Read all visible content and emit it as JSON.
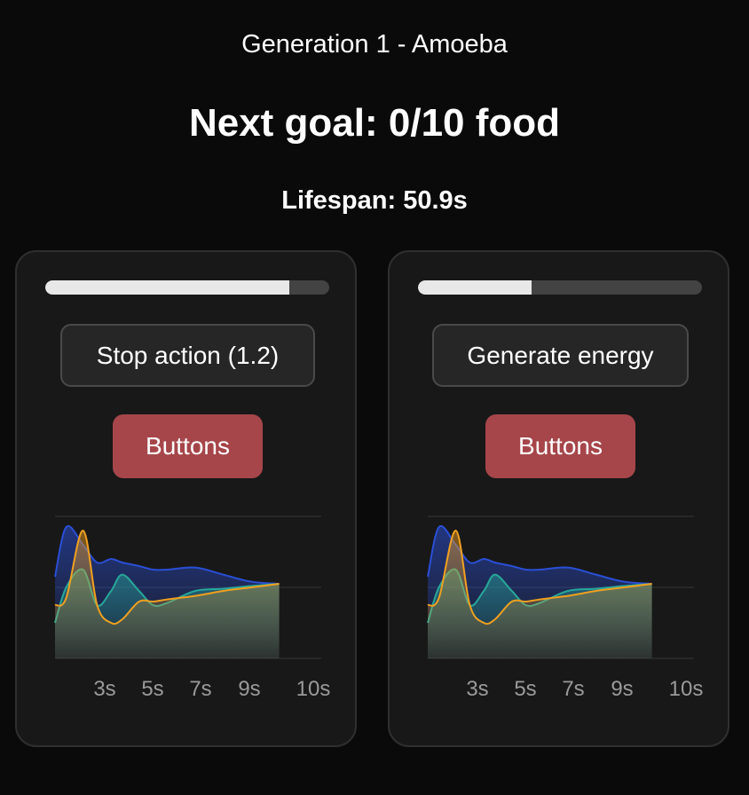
{
  "header": {
    "title": "Generation 1 - Amoeba",
    "goal": "Next goal: 0/10 food",
    "lifespan": "Lifespan: 50.9s"
  },
  "colors": {
    "background": "#0a0a0a",
    "card": "#181818",
    "buttons_accent": "#a6464a",
    "series_blue": "#2a4fd6",
    "series_teal": "#27a89a",
    "series_orange": "#f0a020"
  },
  "cards": [
    {
      "progress": 0.86,
      "action_label": "Stop action (1.2)",
      "buttons_label": "Buttons",
      "x_ticks": [
        "3s",
        "5s",
        "7s",
        "9s",
        "10s"
      ]
    },
    {
      "progress": 0.4,
      "action_label": "Generate energy",
      "buttons_label": "Buttons",
      "x_ticks": [
        "3s",
        "5s",
        "7s",
        "9s",
        "10s"
      ]
    }
  ],
  "chart_data": [
    {
      "type": "area",
      "x": [
        1,
        1.4,
        2,
        2.5,
        3,
        3.4,
        4,
        4.5,
        5,
        6,
        7,
        8,
        9
      ],
      "x_ticks": [
        "3s",
        "5s",
        "7s",
        "9s",
        "10s"
      ],
      "ylim": [
        0,
        2
      ],
      "grid": true,
      "series": [
        {
          "values": [
            1.15,
            1.85,
            1.6,
            1.35,
            1.4,
            1.35,
            1.3,
            1.25,
            1.25,
            1.28,
            1.18,
            1.08,
            1.05
          ]
        },
        {
          "values": [
            0.5,
            1.0,
            1.25,
            0.75,
            0.95,
            1.18,
            0.95,
            0.75,
            0.78,
            0.95,
            0.98,
            1.02,
            1.05
          ]
        },
        {
          "values": [
            0.75,
            0.85,
            1.8,
            0.75,
            0.5,
            0.55,
            0.8,
            0.8,
            0.83,
            0.88,
            0.95,
            1.0,
            1.05
          ]
        }
      ]
    },
    {
      "type": "area",
      "x": [
        1,
        1.4,
        2,
        2.5,
        3,
        3.4,
        4,
        4.5,
        5,
        6,
        7,
        8,
        9
      ],
      "x_ticks": [
        "3s",
        "5s",
        "7s",
        "9s",
        "10s"
      ],
      "ylim": [
        0,
        2
      ],
      "grid": true,
      "series": [
        {
          "values": [
            1.15,
            1.85,
            1.6,
            1.35,
            1.4,
            1.35,
            1.3,
            1.25,
            1.25,
            1.28,
            1.18,
            1.08,
            1.05
          ]
        },
        {
          "values": [
            0.5,
            1.0,
            1.25,
            0.75,
            0.95,
            1.18,
            0.95,
            0.75,
            0.78,
            0.95,
            0.98,
            1.02,
            1.05
          ]
        },
        {
          "values": [
            0.75,
            0.85,
            1.8,
            0.75,
            0.5,
            0.55,
            0.8,
            0.8,
            0.83,
            0.88,
            0.95,
            1.0,
            1.05
          ]
        }
      ]
    }
  ]
}
